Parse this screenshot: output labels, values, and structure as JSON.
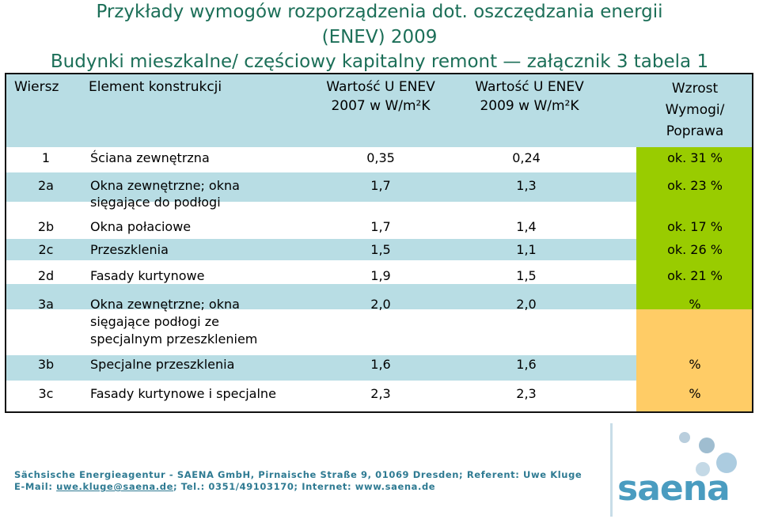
{
  "title": {
    "line1": "Przykłady wymogów rozporządzenia dot. oszczędzania energii",
    "line2": "(ENEV) 2009",
    "line3": "Budynki mieszkalne/ częściowy kapitalny remont — załącznik 3 tabela 1"
  },
  "table": {
    "headers": {
      "wiersz": "Wiersz",
      "element": "Element konstrukcji",
      "enev2007_a": "Wartość U ENEV",
      "enev2007_b": "2007 w W/m²K",
      "enev2009_a": "Wartość U ENEV",
      "enev2009_b": "2009 w W/m²K",
      "wzrost_a": "Wzrost",
      "wzrost_b": "Wymogi/",
      "wzrost_c": "Poprawa"
    },
    "rows": [
      {
        "id": "1",
        "element": "Ściana zewnętrzna",
        "element2": "",
        "element3": "",
        "v2007": "0,35",
        "v2009": "0,24",
        "wzrost": "ok. 31 %"
      },
      {
        "id": "2a",
        "element": "Okna zewnętrzne; okna",
        "element2": "sięgające do podłogi",
        "element3": "",
        "v2007": "1,7",
        "v2009": "1,3",
        "wzrost": "ok. 23 %"
      },
      {
        "id": "2b",
        "element": "Okna połaciowe",
        "element2": "",
        "element3": "",
        "v2007": "1,7",
        "v2009": "1,4",
        "wzrost": "ok. 17 %"
      },
      {
        "id": "2c",
        "element": "Przeszklenia",
        "element2": "",
        "element3": "",
        "v2007": "1,5",
        "v2009": "1,1",
        "wzrost": "ok. 26 %"
      },
      {
        "id": "2d",
        "element": "Fasady kurtynowe",
        "element2": "",
        "element3": "",
        "v2007": "1,9",
        "v2009": "1,5",
        "wzrost": "ok. 21 %"
      },
      {
        "id": "3a",
        "element": "Okna zewnętrzne; okna",
        "element2": "sięgające podłogi ze",
        "element3": "specjalnym przeszkleniem",
        "v2007": "2,0",
        "v2009": "2,0",
        "wzrost": "%"
      },
      {
        "id": "3b",
        "element": "Specjalne przeszklenia",
        "element2": "",
        "element3": "",
        "v2007": "1,6",
        "v2009": "1,6",
        "wzrost": "%"
      },
      {
        "id": "3c",
        "element": "Fasady kurtynowe i specjalne",
        "element2": "",
        "element3": "",
        "v2007": "2,3",
        "v2009": "2,3",
        "wzrost": "%"
      }
    ]
  },
  "footer": {
    "line1": "Sächsische Energieagentur - SAENA GmbH, Pirnaische Straße 9, 01069 Dresden; Referent: Uwe Kluge",
    "email_label": "E-Mail: ",
    "email": "uwe.kluge@saena.de",
    "rest": "; Tel.: 0351/49103170; Internet: www.saena.de"
  },
  "logo": {
    "text": "saena"
  },
  "colors": {
    "title": "#1c6f58",
    "header_bg": "#b8dde4",
    "improvement_bg": "#99cc00",
    "no_change_bg": "#ffcc66",
    "footer": "#2e7a92",
    "logo": "#4a9cc0"
  }
}
